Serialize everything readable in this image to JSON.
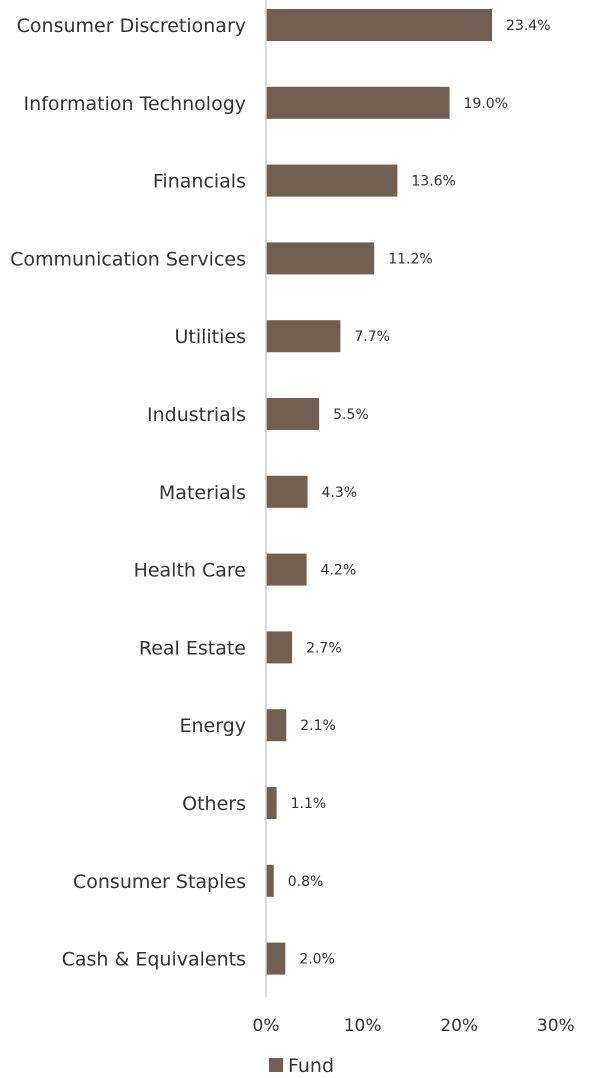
{
  "chart_data": {
    "type": "bar",
    "orientation": "horizontal",
    "categories": [
      "Consumer Discretionary",
      "Information Technology",
      "Financials",
      "Communication Services",
      "Utilities",
      "Industrials",
      "Materials",
      "Health Care",
      "Real Estate",
      "Energy",
      "Others",
      "Consumer Staples",
      "Cash & Equivalents"
    ],
    "series": [
      {
        "name": "Fund",
        "values": [
          23.4,
          19.0,
          13.6,
          11.2,
          7.7,
          5.5,
          4.3,
          4.2,
          2.7,
          2.1,
          1.1,
          0.8,
          2.0
        ],
        "value_labels": [
          "23.4%",
          "19.0%",
          "13.6%",
          "11.2%",
          "7.7%",
          "5.5%",
          "4.3%",
          "4.2%",
          "2.7%",
          "2.1%",
          "1.1%",
          "0.8%",
          "2.0%"
        ],
        "color": "#6f6053"
      }
    ],
    "xlim": [
      0,
      30
    ],
    "x_ticks": [
      0,
      10,
      20,
      30
    ],
    "x_tick_labels": [
      "0%",
      "10%",
      "20%",
      "30%"
    ],
    "title": "",
    "xlabel": "",
    "ylabel": "",
    "grid": false,
    "legend": {
      "position": "bottom",
      "entries": [
        "Fund"
      ]
    },
    "axis_color": "#d0d0d0"
  }
}
